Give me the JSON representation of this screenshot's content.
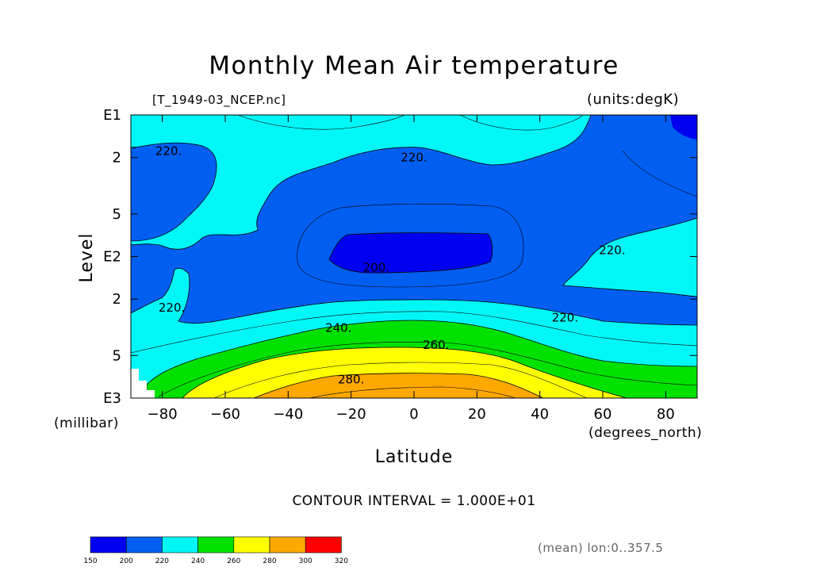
{
  "title": "Monthly Mean Air temperature",
  "file_label": "[T_1949-03_NCEP.nc]",
  "units_label": "(units:degK)",
  "y_axis": {
    "label": "Level",
    "unit": "(millibar)",
    "ticks": [
      {
        "p": 10,
        "label": "E1"
      },
      {
        "p": 20,
        "label": "2"
      },
      {
        "p": 50,
        "label": "5"
      },
      {
        "p": 100,
        "label": "E2"
      },
      {
        "p": 200,
        "label": "2"
      },
      {
        "p": 500,
        "label": "5"
      },
      {
        "p": 1000,
        "label": "E3"
      }
    ]
  },
  "x_axis": {
    "label": "Latitude",
    "unit": "(degrees_north)",
    "range": [
      -90,
      90
    ],
    "ticks": [
      {
        "v": -80,
        "label": "−80"
      },
      {
        "v": -60,
        "label": "−60"
      },
      {
        "v": -40,
        "label": "−40"
      },
      {
        "v": -20,
        "label": "−20"
      },
      {
        "v": 0,
        "label": "0"
      },
      {
        "v": 20,
        "label": "20"
      },
      {
        "v": 40,
        "label": "40"
      },
      {
        "v": 60,
        "label": "60"
      },
      {
        "v": 80,
        "label": "80"
      }
    ]
  },
  "contour_interval": "CONTOUR INTERVAL = 1.000E+01",
  "mean_label": "(mean) lon:0..357.5",
  "chart_data": {
    "type": "contour",
    "title": "Monthly Mean Air temperature",
    "xlabel": "Latitude",
    "ylabel": "Level",
    "xlim": [
      -90,
      90
    ],
    "ylim_hPa": [
      1000,
      10
    ],
    "y_scale": "log",
    "contour_labels": [
      {
        "text": "220.",
        "lat": -78,
        "p": 18
      },
      {
        "text": "220.",
        "lat": 0,
        "p": 20
      },
      {
        "text": "200.",
        "lat": -12,
        "p": 120
      },
      {
        "text": "220.",
        "lat": 63,
        "p": 90
      },
      {
        "text": "220.",
        "lat": -77,
        "p": 230
      },
      {
        "text": "240.",
        "lat": -24,
        "p": 320
      },
      {
        "text": "220.",
        "lat": 48,
        "p": 270
      },
      {
        "text": "260.",
        "lat": 7,
        "p": 420
      },
      {
        "text": "280.",
        "lat": -20,
        "p": 740
      }
    ],
    "regions": [
      {
        "band": "200-220",
        "lat_range": [
          -90,
          90
        ]
      },
      {
        "band": "<200",
        "lat_range": [
          -27,
          25
        ],
        "p_range": [
          70,
          140
        ]
      },
      {
        "band": "220-240",
        "lat_range": [
          -90,
          90
        ]
      },
      {
        "band": "240-260",
        "lat_range": [
          -85,
          90
        ],
        "p_range": [
          300,
          1000
        ]
      },
      {
        "band": "260-280",
        "lat_range": [
          -75,
          67
        ],
        "p_range": [
          400,
          1000
        ]
      },
      {
        "band": "280-300",
        "lat_range": [
          -38,
          45
        ],
        "p_range": [
          700,
          1000
        ]
      }
    ],
    "colorbar": {
      "levels": [
        150,
        200,
        220,
        240,
        260,
        280,
        300,
        320
      ],
      "colors": [
        "#0000f0",
        "#005ef0",
        "#00f7f7",
        "#00e100",
        "#ffff00",
        "#ffa800",
        "#ff0000"
      ]
    }
  }
}
